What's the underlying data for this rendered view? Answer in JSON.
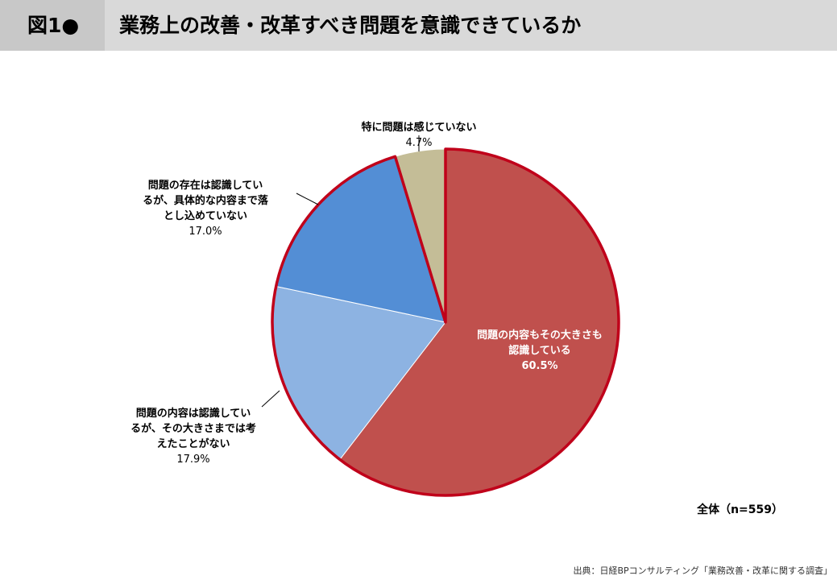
{
  "header": {
    "figure_label": "図1●",
    "title": "業務上の改善・改革すべき問題を意識できているか"
  },
  "chart_data": {
    "type": "pie",
    "title": "業務上の改善・改革すべき問題を意識できているか",
    "slices": [
      {
        "label": "問題の内容もその大きさも\n認識している",
        "value": 60.5,
        "value_label": "60.5%",
        "color": "#c0504d"
      },
      {
        "label": "問題の内容は認識してい\nるが、その大きさまでは考\nえたことがない",
        "value": 17.9,
        "value_label": "17.9%",
        "color": "#8db3e2"
      },
      {
        "label": "問題の存在は認識してい\nるが、具体的な内容まで落\nとし込めていない",
        "value": 17.0,
        "value_label": "17.0%",
        "color": "#538ed5"
      },
      {
        "label": "特に問題は感じていない",
        "value": 4.7,
        "value_label": "4.7%",
        "color": "#c4bd97"
      }
    ],
    "start_angle": "12 o'clock",
    "direction": "clockwise",
    "highlight_outline": "#c0001a"
  },
  "footer": {
    "total": "全体（n=559）",
    "source": "出典：日経BPコンサルティング「業務改善・改革に関する調査」"
  }
}
